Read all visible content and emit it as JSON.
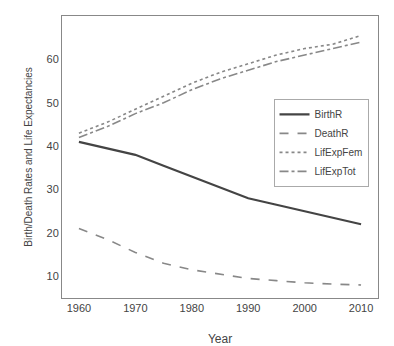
{
  "chart_data": {
    "type": "line",
    "xlabel": "Year",
    "ylabel": "Birth/Death Rates and Life Expectancies",
    "x": [
      1960,
      1965,
      1970,
      1975,
      1980,
      1985,
      1990,
      1995,
      2000,
      2005,
      2010
    ],
    "series": [
      {
        "name": "BirthR",
        "color": "#444444",
        "line_style": "solid",
        "values": [
          41.0,
          39.5,
          38.0,
          35.5,
          33.0,
          30.5,
          28.0,
          26.5,
          25.0,
          23.5,
          22.0
        ]
      },
      {
        "name": "DeathR",
        "color": "#888888",
        "line_style": "dash",
        "values": [
          21.0,
          18.5,
          15.5,
          13.0,
          11.5,
          10.5,
          9.5,
          9.0,
          8.5,
          8.2,
          8.0
        ]
      },
      {
        "name": "LifExpFem",
        "color": "#888888",
        "line_style": "dot",
        "values": [
          43.0,
          45.5,
          48.5,
          51.5,
          54.5,
          57.0,
          59.0,
          61.0,
          62.5,
          63.5,
          65.5
        ]
      },
      {
        "name": "LifExpTot",
        "color": "#888888",
        "line_style": "dashdot",
        "values": [
          42.0,
          44.5,
          47.5,
          50.0,
          53.0,
          55.5,
          57.5,
          59.5,
          61.0,
          62.5,
          64.0
        ]
      }
    ],
    "xlim": [
      1957,
      2013
    ],
    "ylim": [
      5,
      70
    ],
    "xticks": [
      1960,
      1970,
      1980,
      1990,
      2000,
      2010
    ],
    "yticks": [
      10,
      20,
      30,
      40,
      50,
      60
    ],
    "grid": false,
    "legend": "right"
  }
}
